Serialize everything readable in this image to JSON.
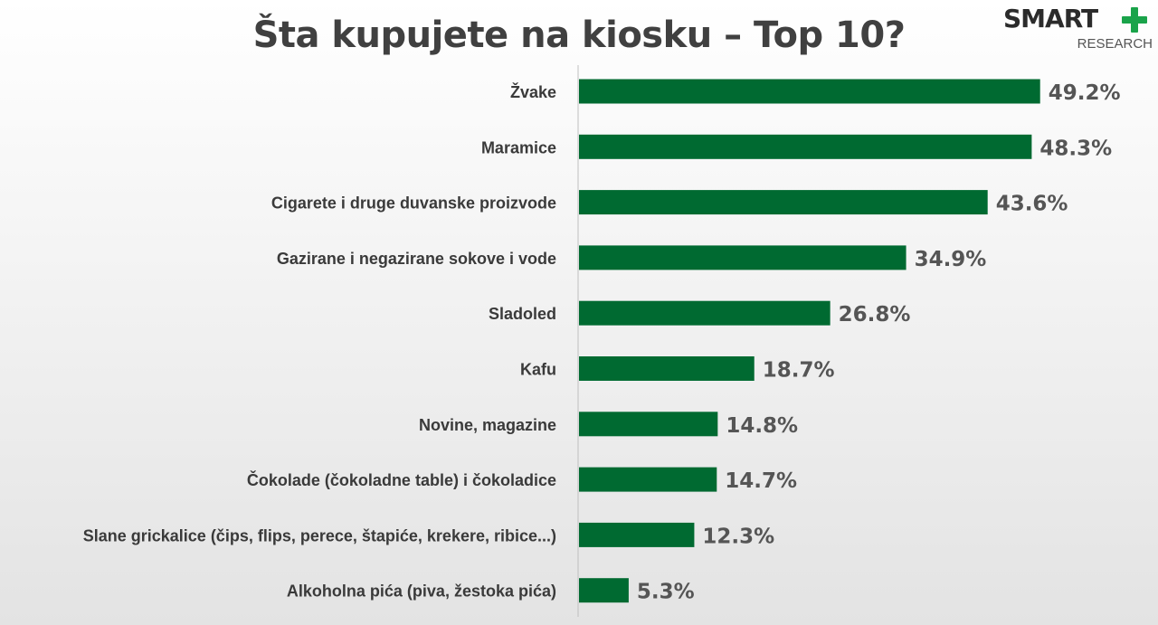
{
  "chart_data": {
    "type": "bar",
    "orientation": "horizontal",
    "title": "Šta kupujete na kiosku – Top 10?",
    "categories": [
      "Žvake",
      "Maramice",
      "Cigarete i druge duvanske proizvode",
      "Gazirane i negazirane sokove i vode",
      "Sladoled",
      "Kafu",
      "Novine, magazine",
      "Čokolade (čokoladne table) i čokoladice",
      "Slane grickalice (čips, flips, perece, štapiće, krekere, ribice...)",
      "Alkoholna pića (piva, žestoka pića)"
    ],
    "values": [
      49.2,
      48.3,
      43.6,
      34.9,
      26.8,
      18.7,
      14.8,
      14.7,
      12.3,
      5.3
    ],
    "value_labels": [
      "49.2%",
      "48.3%",
      "43.6%",
      "34.9%",
      "26.8%",
      "18.7%",
      "14.8%",
      "14.7%",
      "12.3%",
      "5.3%"
    ],
    "xlim": [
      0,
      55
    ],
    "grid": false,
    "bar_color": "#006a31"
  },
  "logo": {
    "name": "SMART",
    "sub": "RESEARCH",
    "accent": "#1aa34a"
  }
}
